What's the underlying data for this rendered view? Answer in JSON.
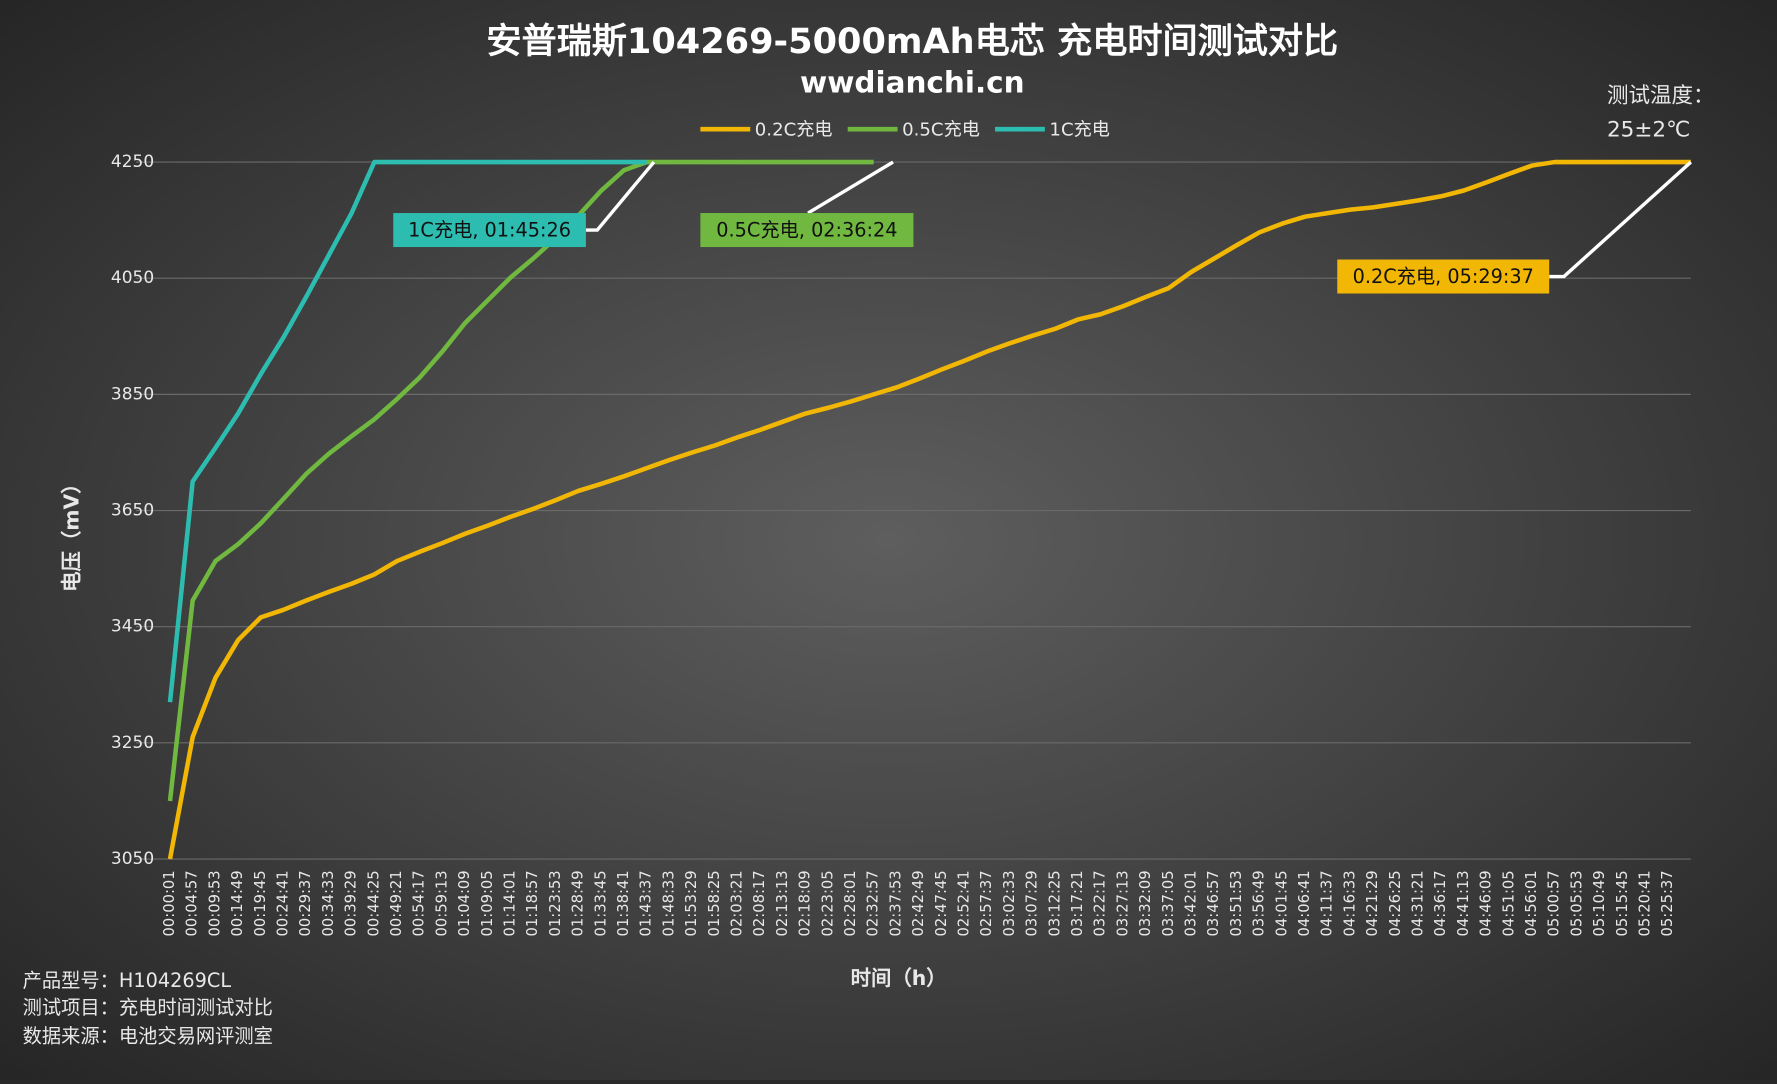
{
  "chart_data": {
    "type": "line",
    "title": "安普瑞斯104269-5000mAh电芯 充电时间测试对比",
    "subtitle": "wwdianchi.cn",
    "x_label": "时间（h）",
    "y_label": "电压（mV）",
    "temperature_note": [
      "测试温度：",
      "25±2℃"
    ],
    "footer": [
      "产品型号：H104269CL",
      "测试项目：充电时间测试对比",
      "数据来源：电池交易网评测室"
    ],
    "grid": true,
    "legend": "top",
    "ylim": [
      3050,
      4250
    ],
    "yticks": [
      3050,
      3250,
      3450,
      3650,
      3850,
      4050,
      4250
    ],
    "categories": [
      "00:00:01",
      "00:04:57",
      "00:09:53",
      "00:14:49",
      "00:19:45",
      "00:24:41",
      "00:29:37",
      "00:34:33",
      "00:39:29",
      "00:44:25",
      "00:49:21",
      "00:54:17",
      "00:59:13",
      "01:04:09",
      "01:09:05",
      "01:14:01",
      "01:18:57",
      "01:23:53",
      "01:28:49",
      "01:33:45",
      "01:38:41",
      "01:43:37",
      "01:48:33",
      "01:53:29",
      "01:58:25",
      "02:03:21",
      "02:08:17",
      "02:13:13",
      "02:18:09",
      "02:23:05",
      "02:28:01",
      "02:32:57",
      "02:37:53",
      "02:42:49",
      "02:47:45",
      "02:52:41",
      "02:57:37",
      "03:02:33",
      "03:07:29",
      "03:12:25",
      "03:17:21",
      "03:22:17",
      "03:27:13",
      "03:32:09",
      "03:37:05",
      "03:42:01",
      "03:46:57",
      "03:51:53",
      "03:56:49",
      "04:01:45",
      "04:06:41",
      "04:11:37",
      "04:16:33",
      "04:21:29",
      "04:26:25",
      "04:31:21",
      "04:36:17",
      "04:41:13",
      "04:46:09",
      "04:51:05",
      "04:56:01",
      "05:00:57",
      "05:05:53",
      "05:10:49",
      "05:15:45",
      "05:20:41",
      "05:25:37",
      null
    ],
    "series": [
      {
        "name": "0.2C充电",
        "color": "#f2b705",
        "values": [
          3050,
          3260,
          3362,
          3427,
          3466,
          3479,
          3495,
          3510,
          3524,
          3540,
          3563,
          3579,
          3594,
          3610,
          3624,
          3639,
          3653,
          3668,
          3684,
          3696,
          3709,
          3723,
          3737,
          3750,
          3762,
          3776,
          3789,
          3803,
          3817,
          3827,
          3838,
          3850,
          3862,
          3877,
          3893,
          3908,
          3924,
          3938,
          3951,
          3963,
          3979,
          3988,
          4002,
          4018,
          4033,
          4061,
          4084,
          4107,
          4129,
          4144,
          4156,
          4162,
          4168,
          4172,
          4178,
          4184,
          4191,
          4201,
          4215,
          4230,
          4244,
          4250,
          4250,
          4250,
          4250,
          4250,
          4250,
          4250
        ]
      },
      {
        "name": "0.5C充电",
        "color": "#70b83f",
        "values": [
          3150,
          3495,
          3563,
          3592,
          3628,
          3670,
          3713,
          3748,
          3778,
          3807,
          3842,
          3879,
          3924,
          3973,
          4012,
          4051,
          4084,
          4119,
          4158,
          4201,
          4236,
          4250,
          4250,
          4250,
          4250,
          4250,
          4250,
          4250,
          4250,
          4250,
          4250,
          4250,
          null,
          null,
          null,
          null,
          null,
          null,
          null,
          null,
          null,
          null,
          null,
          null,
          null,
          null,
          null,
          null,
          null,
          null,
          null,
          null,
          null,
          null,
          null,
          null,
          null,
          null,
          null,
          null,
          null,
          null,
          null,
          null,
          null,
          null,
          null,
          null
        ]
      },
      {
        "name": "1C充电",
        "color": "#2dbdb0",
        "values": [
          3320,
          3700,
          3758,
          3817,
          3885,
          3948,
          4018,
          4090,
          4162,
          4250,
          4250,
          4250,
          4250,
          4250,
          4250,
          4250,
          4250,
          4250,
          4250,
          4250,
          4250,
          4250,
          null,
          null,
          null,
          null,
          null,
          null,
          null,
          null,
          null,
          null,
          null,
          null,
          null,
          null,
          null,
          null,
          null,
          null,
          null,
          null,
          null,
          null,
          null,
          null,
          null,
          null,
          null,
          null,
          null,
          null,
          null,
          null,
          null,
          null,
          null,
          null,
          null,
          null,
          null,
          null,
          null,
          null,
          null,
          null,
          null,
          null
        ]
      }
    ],
    "annotations": [
      {
        "text": "1C充电, 01:45:26",
        "color": "#2dbdb0"
      },
      {
        "text": "0.5C充电, 02:36:24",
        "color": "#70b83f"
      },
      {
        "text": "0.2C充电, 05:29:37",
        "color": "#f2b705"
      }
    ]
  }
}
